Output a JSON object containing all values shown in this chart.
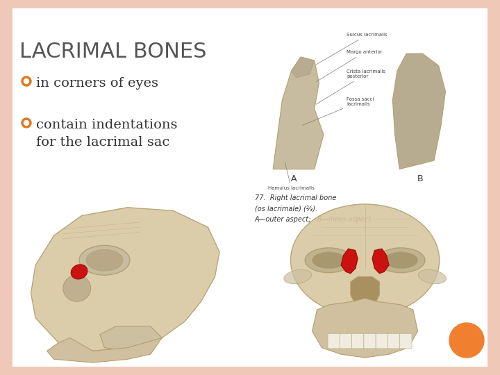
{
  "title": "LACRIMAL BONES",
  "title_color": "#555555",
  "title_fontsize": 22,
  "bullet_color": "#e07820",
  "bullet_text_color": "#333333",
  "bullet_fontsize": 14,
  "bullets": [
    {
      "text": "in corners of eyes"
    },
    {
      "text": "contain indentations\nfor the lacrimal sac"
    }
  ],
  "background_color": "#ffffff",
  "border_color": "#f0c8b8",
  "orange_dot_color": "#f08030",
  "bone_diagram_bg": "#f0ece4",
  "skull_bone_color": "#d8c8a0",
  "skull_bone_edge": "#b0a070",
  "lacrimal_red": "#cc1111",
  "lacrimal_red_edge": "#991100",
  "annotation_text_color": "#444444",
  "caption_text_color": "#333333"
}
